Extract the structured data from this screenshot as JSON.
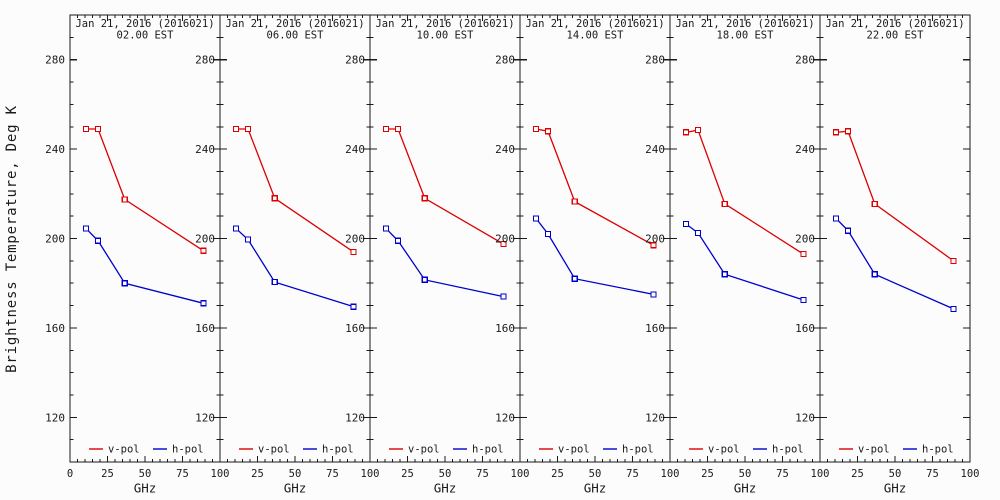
{
  "chart_data": {
    "type": "line",
    "title_line1": "Jan 21, 2016 (2016021)",
    "ylabel": "Brightness Temperature, Deg K",
    "xlabel": "GHz",
    "x": [
      10.65,
      18.7,
      36.5,
      89
    ],
    "xlim": [
      0,
      100
    ],
    "ylim": [
      100,
      300
    ],
    "xticks": [
      0,
      25,
      50,
      75,
      100
    ],
    "x_minor_step": 5,
    "yticks": [
      120,
      160,
      200,
      240,
      280
    ],
    "y_minor_step": 10,
    "legend_position": "bottom-inside",
    "grid": false,
    "colors": {
      "axis": "#1a1a1a",
      "background": "#fcfcfc"
    },
    "series_defs": [
      {
        "id": "v_pol",
        "label": "v-pol",
        "color": "#dc0000"
      },
      {
        "id": "h_pol",
        "label": "h-pol",
        "color": "#0000cd"
      }
    ],
    "panels": [
      {
        "subtitle": "02.00 EST",
        "v_pol": [
          249,
          249,
          217.5,
          194.5
        ],
        "h_pol": [
          204.5,
          199,
          180,
          171
        ]
      },
      {
        "subtitle": "06.00 EST",
        "v_pol": [
          249,
          249,
          218,
          194
        ],
        "h_pol": [
          204.5,
          199.5,
          180.5,
          169.5
        ]
      },
      {
        "subtitle": "10.00 EST",
        "v_pol": [
          249,
          249,
          218,
          197.5
        ],
        "h_pol": [
          204.5,
          199,
          181.5,
          174
        ]
      },
      {
        "subtitle": "14.00 EST",
        "v_pol": [
          249,
          248,
          216.5,
          197
        ],
        "h_pol": [
          209,
          202,
          182,
          175
        ]
      },
      {
        "subtitle": "18.00 EST",
        "v_pol": [
          247.5,
          248.5,
          215.5,
          193
        ],
        "h_pol": [
          206.5,
          202.5,
          184,
          172.5
        ]
      },
      {
        "subtitle": "22.00 EST",
        "v_pol": [
          247.5,
          248,
          215.5,
          190
        ],
        "h_pol": [
          209,
          203.5,
          184,
          168.5
        ]
      }
    ]
  }
}
